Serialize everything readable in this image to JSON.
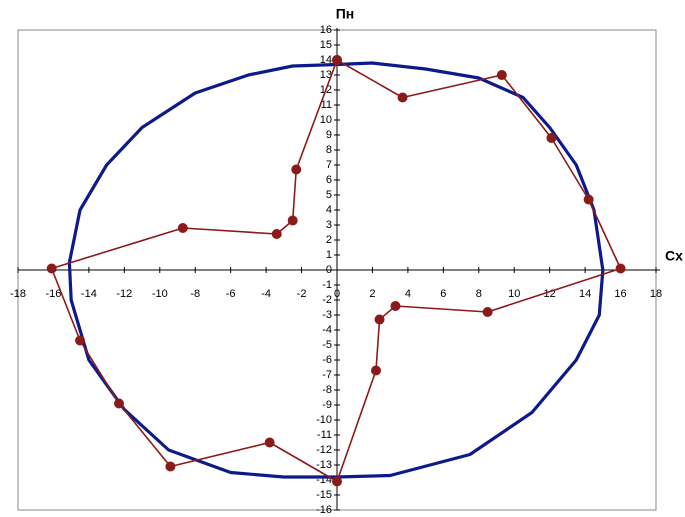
{
  "chart_data": {
    "type": "scatter-line",
    "x_axis_label": "Сх",
    "y_axis_label": "Пн",
    "xlim": [
      -18,
      18
    ],
    "ylim": [
      -16,
      16
    ],
    "xticks": [
      -18,
      -16,
      -14,
      -12,
      -10,
      -8,
      -6,
      -4,
      -2,
      0,
      2,
      4,
      6,
      8,
      10,
      12,
      14,
      16,
      18
    ],
    "yticks": [
      -16,
      -15,
      -14,
      -13,
      -12,
      -11,
      -10,
      -9,
      -8,
      -7,
      -6,
      -5,
      -4,
      -3,
      -2,
      -1,
      0,
      1,
      2,
      3,
      4,
      5,
      6,
      7,
      8,
      9,
      10,
      11,
      12,
      13,
      14,
      15,
      16
    ],
    "series": [
      {
        "color": "#0d1b8a",
        "markers": false,
        "x": [
          0,
          2,
          5,
          8,
          10.5,
          12,
          13.5,
          14.5,
          15,
          14.8,
          13.5,
          11,
          7.5,
          3,
          0,
          -3,
          -6,
          -9.5,
          -12,
          -14,
          -15,
          -15.1,
          -14.5,
          -13,
          -11,
          -8,
          -5,
          -2.5,
          0
        ],
        "values": [
          13.7,
          13.8,
          13.4,
          12.8,
          11.5,
          9.5,
          7,
          4,
          0,
          -3,
          -6,
          -9.5,
          -12.3,
          -13.7,
          -13.8,
          -13.8,
          -13.5,
          -12,
          -9.3,
          -6,
          -2,
          0.5,
          4,
          7,
          9.5,
          11.8,
          13,
          13.6,
          13.7
        ]
      },
      {
        "color": "#8b1a1a",
        "markers": true,
        "x": [
          0,
          3.7,
          9.3,
          12.1,
          14.2,
          16,
          8.5,
          3.3,
          2.4,
          2.2,
          0,
          -3.8,
          -9.4,
          -12.3,
          -14.5,
          -16.1,
          -8.7,
          -3.4,
          -2.5,
          -2.3,
          0
        ],
        "values": [
          14,
          11.5,
          13,
          8.8,
          4.7,
          0.1,
          -2.8,
          -2.4,
          -3.3,
          -6.7,
          -14.1,
          -11.5,
          -13.1,
          -8.9,
          -4.7,
          0.1,
          2.8,
          2.4,
          3.3,
          6.7,
          14
        ]
      }
    ]
  }
}
